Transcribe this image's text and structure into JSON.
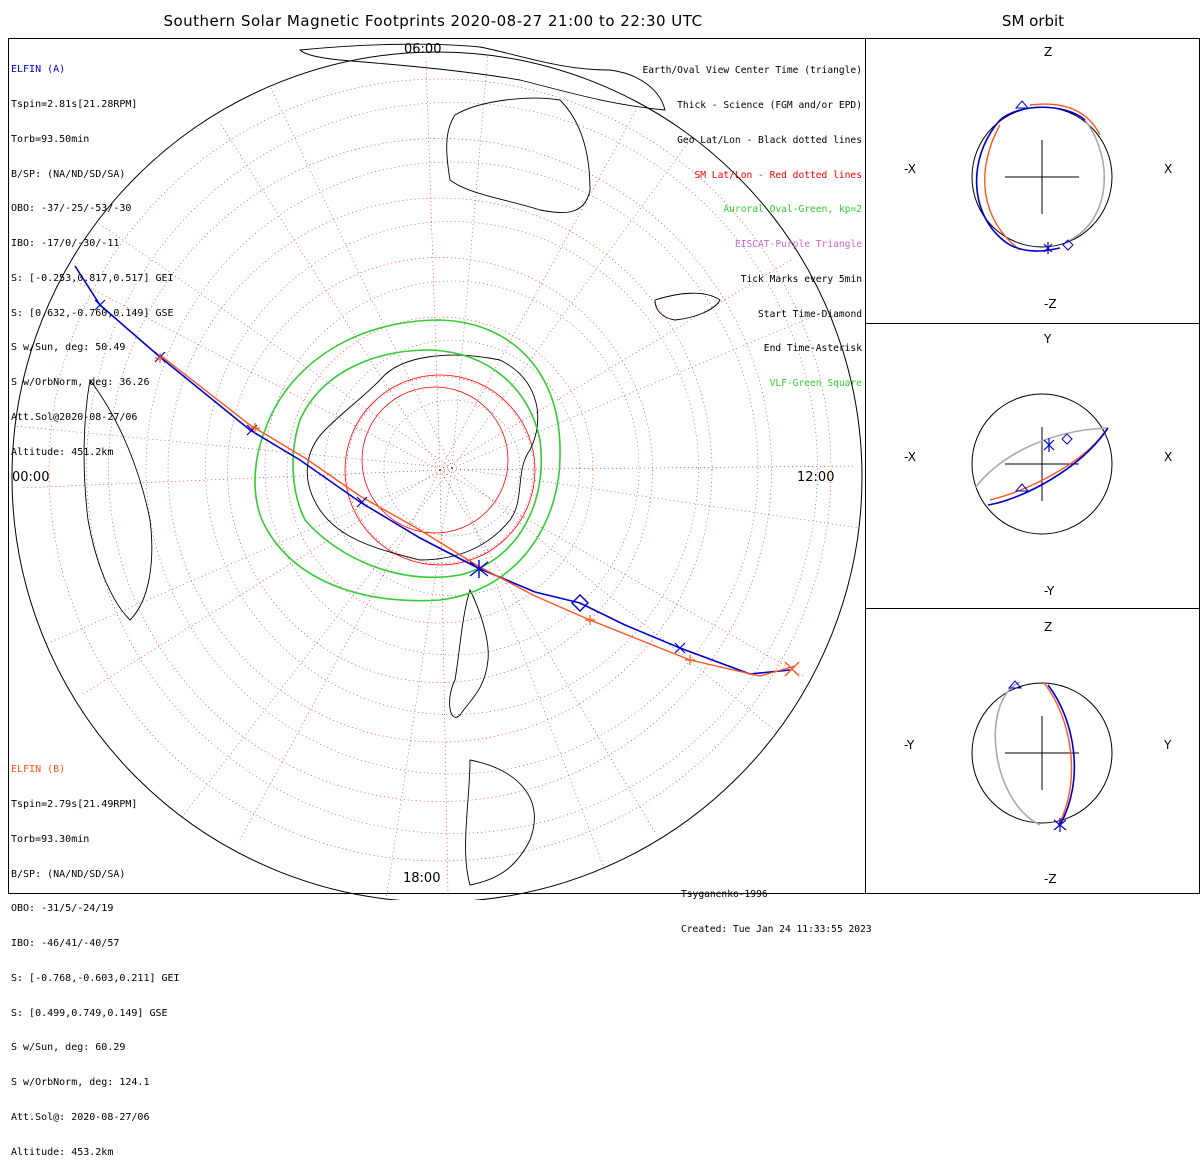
{
  "title": "Southern Solar Magnetic Footprints 2020-08-27 21:00 to 22:30 UTC",
  "orbit_title": "SM orbit",
  "elfin_a": {
    "name": "ELFIN (A)",
    "color": "#0000cc",
    "lines": [
      "Tspin=2.81s[21.28RPM]",
      "Torb=93.50min",
      "B/SP: (NA/ND/SD/SA)",
      "OBO: -37/-25/-53/-30",
      "IBO: -17/0/-30/-11",
      "S: [-0.253,0.817,0.517] GEI",
      "S: [0.632,-0.760,0.149] GSE",
      "S w/Sun, deg: 50.49",
      "S w/OrbNorm, deg: 36.26",
      "Att.Sol@2020-08-27/06",
      "Altitude: 451.2km"
    ]
  },
  "elfin_b": {
    "name": "ELFIN (B)",
    "color": "#ff5522",
    "lines": [
      "Tspin=2.79s[21.49RPM]",
      "Torb=93.30min",
      "B/SP: (NA/ND/SD/SA)",
      "OBO: -31/5/-24/19",
      "IBO: -46/41/-40/57",
      "S: [-0.768,-0.603,0.211] GEI",
      "S: [0.499,0.749,0.149] GSE",
      "S w/Sun, deg: 60.29",
      "S w/OrbNorm, deg: 124.1",
      "Att.Sol@: 2020-08-27/06",
      "Altitude: 453.2km"
    ]
  },
  "legend": [
    {
      "text": "Earth/Oval View Center Time (triangle)",
      "color": "#000000"
    },
    {
      "text": "Thick - Science (FGM and/or EPD)",
      "color": "#000000"
    },
    {
      "text": "Geo Lat/Lon - Black dotted lines",
      "color": "#000000"
    },
    {
      "text": "SM Lat/Lon - Red dotted lines",
      "color": "#ff0000"
    },
    {
      "text": "Auroral Oval-Green, kp=2",
      "color": "#33cc33"
    },
    {
      "text": "EISCAT-Purple Triangle",
      "color": "#cc66cc"
    },
    {
      "text": "Tick Marks every 5min",
      "color": "#000000"
    },
    {
      "text": "Start Time-Diamond",
      "color": "#000000"
    },
    {
      "text": "End Time-Asterisk",
      "color": "#000000"
    },
    {
      "text": "VLF-Green Square",
      "color": "#33cc33"
    }
  ],
  "footer": {
    "model": "Tsyganenko-1996",
    "created": "Created: Tue Jan 24 11:33:55 2023"
  },
  "map_labels": {
    "left": "00:00",
    "right": "12:00",
    "bottom": "18:00",
    "top": "06:00"
  },
  "orbit_panels": [
    {
      "name": "xz",
      "top": "Z",
      "bottom": "-Z",
      "left": "-X",
      "right": "X"
    },
    {
      "name": "xy",
      "top": "Y",
      "bottom": "-Y",
      "left": "-X",
      "right": "X"
    },
    {
      "name": "yz",
      "top": "Z",
      "bottom": "-Z",
      "left": "-Y",
      "right": "Y"
    }
  ],
  "chart_data": {
    "type": "polar map",
    "projection": "southern hemisphere, solar magnetic coordinates, MLT around rim",
    "mlt_labels": [
      "00:00",
      "06:00",
      "12:00",
      "18:00"
    ],
    "series": [
      {
        "name": "ELFIN (A)",
        "color": "#0000cc"
      },
      {
        "name": "ELFIN (B)",
        "color": "#ff5522"
      }
    ],
    "auroral_oval_kp": 2,
    "tick_interval_min": 5
  }
}
